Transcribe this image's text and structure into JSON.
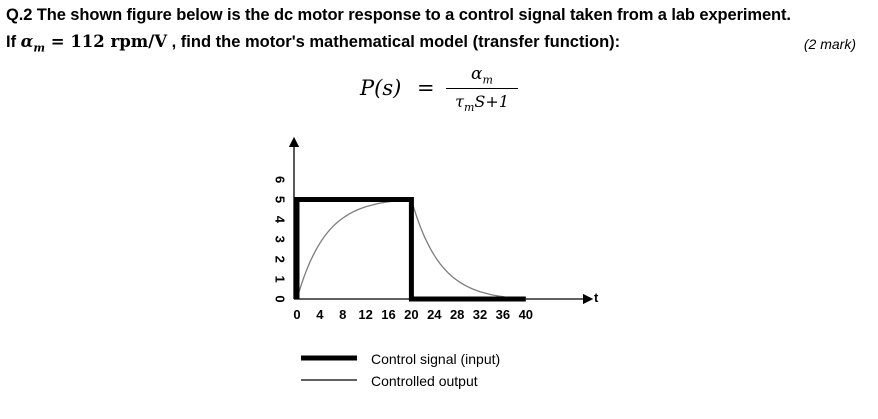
{
  "question": {
    "line1": "Q.2 The shown figure below is the dc motor response to a control signal taken from a lab experiment.",
    "line2_prefix": "If ",
    "alpha_symbol": "α",
    "alpha_sub": "m",
    "alpha_value": " = 112 rpm/V",
    "line2_suffix": " ,  find the motor's mathematical model (transfer function):",
    "marks": "(2 mark)"
  },
  "formula": {
    "lhs": "P(s)",
    "equals": "=",
    "numerator": "α",
    "numerator_sub": "m",
    "denominator_tau": "τ",
    "denominator_sub": "m",
    "denominator_rest": "S+1"
  },
  "chart_data": {
    "type": "line",
    "x_axis_label": "t",
    "x_ticks": [
      0,
      4,
      8,
      12,
      16,
      20,
      24,
      28,
      32,
      36,
      40
    ],
    "y_ticks": [
      0,
      1,
      2,
      3,
      4,
      5,
      6
    ],
    "series": [
      {
        "name": "Control signal (input)",
        "points": [
          [
            0,
            0
          ],
          [
            0,
            5
          ],
          [
            20,
            5
          ],
          [
            20,
            0
          ],
          [
            40,
            0
          ]
        ]
      },
      {
        "name": "Controlled output",
        "rise": {
          "from_t": 0,
          "to_t": 20,
          "from_y": 0,
          "to_y": 5
        },
        "decay": {
          "from_t": 20,
          "to_t": 40,
          "from_y": 5,
          "to_y": 0
        }
      }
    ]
  },
  "legend": {
    "input_label": "Control signal (input)",
    "output_label": "Controlled output"
  }
}
